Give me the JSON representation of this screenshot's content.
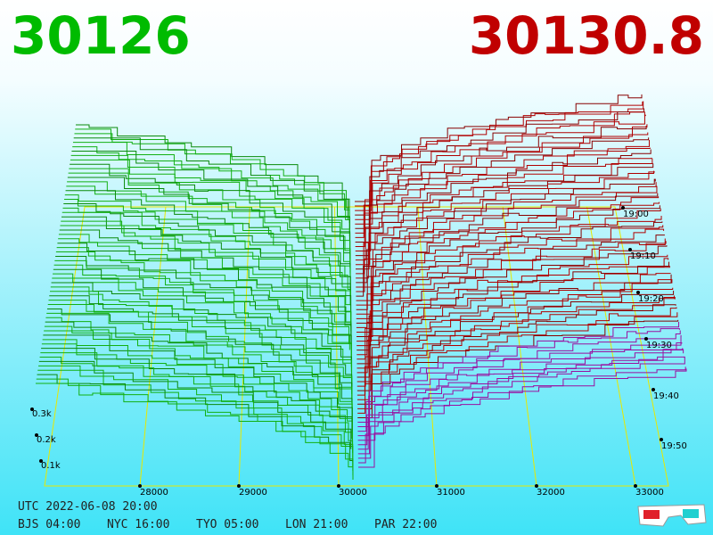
{
  "header": {
    "bid": "30126",
    "ask": "30130.8"
  },
  "price_axis": [
    "28000",
    "29000",
    "30000",
    "31000",
    "32000",
    "33000"
  ],
  "qty_axis": [
    "0.3k",
    "0.2k",
    "0.1k"
  ],
  "time_axis": [
    "19:00",
    "19:10",
    "19:20",
    "19:30",
    "19:40",
    "19:50"
  ],
  "footer": {
    "utc": "UTC 2022-06-08 20:00",
    "zones": [
      "BJS 04:00",
      "NYC 16:00",
      "TYO 05:00",
      "LON 21:00",
      "PAR 22:00"
    ]
  }
}
